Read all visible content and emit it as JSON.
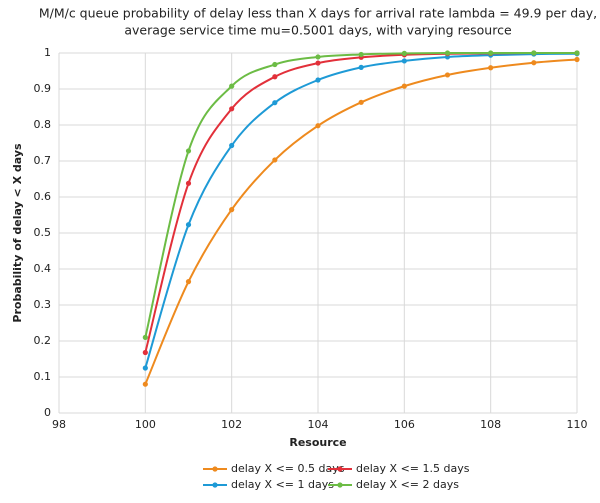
{
  "chart_data": {
    "type": "line",
    "title": [
      "M/M/c queue probability of delay less than X days for arrival rate lambda = 49.9 per day,",
      "average service time mu=0.5001 days, with varying resource"
    ],
    "x_label": "Resource",
    "y_label": "Probability of delay < X days",
    "x": [
      100,
      101,
      102,
      103,
      104,
      105,
      106,
      107,
      108,
      109,
      110
    ],
    "series": [
      {
        "name": "delay X <= 0.5 days",
        "color": "#ee8a1e",
        "values": [
          0.08,
          0.365,
          0.565,
          0.703,
          0.798,
          0.863,
          0.908,
          0.939,
          0.959,
          0.973,
          0.982
        ]
      },
      {
        "name": "delay X <= 1 days",
        "color": "#1e9ad6",
        "values": [
          0.125,
          0.523,
          0.743,
          0.862,
          0.925,
          0.96,
          0.978,
          0.989,
          0.994,
          0.997,
          0.998
        ]
      },
      {
        "name": "delay X <= 1.5 days",
        "color": "#e2303a",
        "values": [
          0.168,
          0.638,
          0.845,
          0.934,
          0.972,
          0.988,
          0.995,
          0.998,
          0.999,
          1.0,
          1.0
        ]
      },
      {
        "name": "delay X <= 2 days",
        "color": "#6cbc45",
        "values": [
          0.21,
          0.728,
          0.908,
          0.968,
          0.989,
          0.996,
          0.999,
          1.0,
          1.0,
          1.0,
          1.0
        ]
      }
    ],
    "xlim": [
      98,
      110
    ],
    "xticks": [
      98,
      100,
      102,
      104,
      106,
      108,
      110
    ],
    "ylim": [
      0,
      1
    ],
    "yticks": [
      0,
      0.1,
      0.2,
      0.3,
      0.4,
      0.5,
      0.6,
      0.7,
      0.8,
      0.9,
      1
    ],
    "grid": true,
    "legend": "bottom"
  }
}
